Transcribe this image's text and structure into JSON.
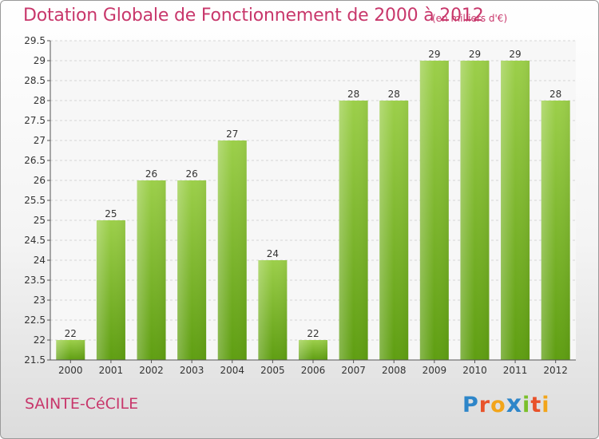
{
  "chart_data": {
    "type": "bar",
    "title": "Dotation Globale de Fonctionnement de 2000 à 2012",
    "subtitle": "(en milliers d'€)",
    "categories": [
      "2000",
      "2001",
      "2002",
      "2003",
      "2004",
      "2005",
      "2006",
      "2007",
      "2008",
      "2009",
      "2010",
      "2011",
      "2012"
    ],
    "values": [
      22,
      25,
      26,
      26,
      27,
      24,
      22,
      28,
      28,
      29,
      29,
      29,
      28
    ],
    "ylim": [
      21.5,
      29.5
    ],
    "yticks": [
      "21.5",
      "22",
      "22.5",
      "23",
      "23.5",
      "24",
      "24.5",
      "25",
      "25.5",
      "26",
      "26.5",
      "27",
      "27.5",
      "28",
      "28.5",
      "29",
      "29.5"
    ],
    "xlabel": "",
    "ylabel": "",
    "grid": true,
    "bar_color": "#7fbf2a"
  },
  "footer": {
    "place": "SAINTE-CéCILE",
    "logo_letters": [
      {
        "ch": "P",
        "color": "#2e86c9"
      },
      {
        "ch": "r",
        "color": "#e8522a"
      },
      {
        "ch": "o",
        "color": "#f2a51a"
      },
      {
        "ch": "x",
        "color": "#2e86c9"
      },
      {
        "ch": "i",
        "color": "#7bbf2a"
      },
      {
        "ch": "t",
        "color": "#e8522a"
      },
      {
        "ch": "i",
        "color": "#f2a51a"
      }
    ]
  }
}
